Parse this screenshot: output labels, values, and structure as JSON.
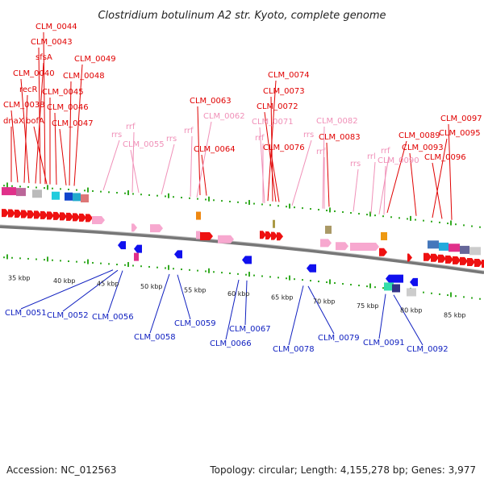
{
  "title": "Clostridium botulinum A2 str. Kyoto, complete genome",
  "footer": {
    "accession": "Accession: NC_012563",
    "summary": "Topology: circular; Length: 4,155,278 bp; Genes: 3,977"
  },
  "colors": {
    "forward_gene": "#ee1111",
    "reverse_gene": "#1010ee",
    "rna": "#f7a8cf",
    "top_label": "#e00000",
    "bottom_label": "#1020c0",
    "rna_label": "#f090b8",
    "tick": "#33aa22",
    "backbone": "#888888"
  },
  "kbp_ticks": [
    "35 kbp",
    "40 kbp",
    "45 kbp",
    "50 kbp",
    "55 kbp",
    "60 kbp",
    "65 kbp",
    "70 kbp",
    "75 kbp",
    "80 kbp",
    "85 kbp"
  ],
  "top_labels": [
    "dnaX",
    "CLM_0038",
    "recR",
    "CLM_0040",
    "sfsA",
    "CLM_0043",
    "CLM_0044",
    "bofA",
    "CLM_0045",
    "CLM_0046",
    "CLM_0047",
    "CLM_0048",
    "CLM_0049",
    "CLM_0063",
    "CLM_0064",
    "CLM_0074",
    "CLM_0073",
    "CLM_0072",
    "CLM_0076",
    "CLM_0083",
    "CLM_0089",
    "CLM_0093",
    "CLM_0095",
    "CLM_0096",
    "CLM_0097"
  ],
  "rna_labels": [
    "rrs",
    "rrf",
    "CLM_0055",
    "rrs",
    "rrf",
    "CLM_0062",
    "CLM_0071",
    "rrf",
    "rrs",
    "CLM_0082",
    "rrf",
    "rrs",
    "rrl",
    "rrf",
    "CLM_0090"
  ],
  "bottom_labels": [
    "CLM_0051",
    "CLM_0052",
    "CLM_0056",
    "CLM_0058",
    "CLM_0059",
    "CLM_0066",
    "CLM_0067",
    "CLM_0078",
    "CLM_0079",
    "CLM_0091",
    "CLM_0092"
  ]
}
